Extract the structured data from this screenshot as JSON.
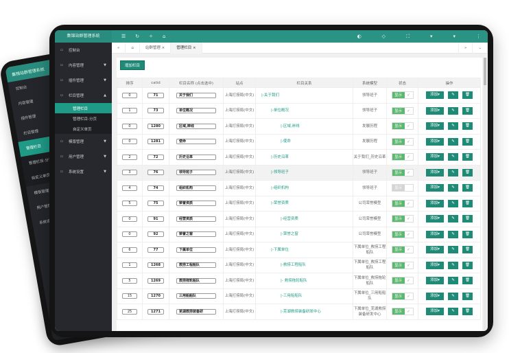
{
  "app": {
    "title": "集锦站群管理系统"
  },
  "sidebar": {
    "items": [
      {
        "label": "控制台",
        "icon": "home-icon"
      },
      {
        "label": "内容管理",
        "icon": "document-icon",
        "caret": "▼"
      },
      {
        "label": "插件管理",
        "icon": "plugin-icon",
        "caret": "▼"
      },
      {
        "label": "栏目管理",
        "icon": "column-icon",
        "caret": "▲"
      }
    ],
    "sub_items": [
      {
        "label": "管理栏目",
        "active": true
      },
      {
        "label": "管理栏目-分页"
      },
      {
        "label": "自定义单页"
      }
    ],
    "more_items": [
      {
        "label": "模版管理",
        "icon": "template-icon",
        "caret": "▼"
      },
      {
        "label": "用户管理",
        "icon": "user-icon",
        "caret": "▼"
      },
      {
        "label": "系统设置",
        "icon": "settings-icon",
        "caret": "▼"
      }
    ]
  },
  "tabs": [
    {
      "label": "站群管理"
    },
    {
      "label": "管理栏目"
    }
  ],
  "main": {
    "add_button": "增加栏目",
    "headers": [
      "排序",
      "catid",
      "栏目名称 (点击选中)",
      "站点",
      "栏目关系",
      "系统模型",
      "状态",
      "操作"
    ],
    "site": "上海打捞局(中文)",
    "status_label": "显示",
    "add_label": "添加▾",
    "rows": [
      {
        "sort": "0",
        "catid": "71",
        "name": "关于我们",
        "rel": "|-关于我们",
        "model": "领导班子",
        "level": 0,
        "on": true
      },
      {
        "sort": "1",
        "catid": "73",
        "name": "单位概况",
        "rel": "|-单位概况",
        "model": "领导班子",
        "level": 1,
        "on": true
      },
      {
        "sort": "0",
        "catid": "1280",
        "name": "区域,岸线",
        "rel": "|-区域,岸线",
        "model": "发展历程",
        "level": 2,
        "on": true
      },
      {
        "sort": "0",
        "catid": "1281",
        "name": "使命",
        "rel": "|-使命",
        "model": "发展历程",
        "level": 2,
        "on": true
      },
      {
        "sort": "2",
        "catid": "72",
        "name": "历史沿革",
        "rel": "|-历史沿革",
        "model": "关于我们_历史沿革",
        "level": 1,
        "on": true
      },
      {
        "sort": "3",
        "catid": "76",
        "name": "领导班子",
        "rel": "|-领导班子",
        "model": "领导班子",
        "level": 1,
        "on": true,
        "highlight": true
      },
      {
        "sort": "4",
        "catid": "74",
        "name": "组织机构",
        "rel": "|-组织机构",
        "model": "领导班子",
        "level": 1,
        "on": false
      },
      {
        "sort": "5",
        "catid": "75",
        "name": "荣誉资质",
        "rel": "|-荣誉资质",
        "model": "公司荣誉模型",
        "level": 1,
        "on": true
      },
      {
        "sort": "0",
        "catid": "91",
        "name": "经营资质",
        "rel": "|-经营资质",
        "model": "公司荣誉模型",
        "level": 2,
        "on": true
      },
      {
        "sort": "0",
        "catid": "92",
        "name": "荣誉之窗",
        "rel": "|-荣誉之窗",
        "model": "公司荣誉模型",
        "level": 2,
        "on": true
      },
      {
        "sort": "6",
        "catid": "77",
        "name": "下属单位",
        "rel": "|-下属单位",
        "model": "下属单位_救捞工程船队",
        "level": 1,
        "on": true
      },
      {
        "sort": "1",
        "catid": "1268",
        "name": "救捞工程船队",
        "rel": "|-救捞工程船队",
        "model": "下属单位_救捞工程船队",
        "level": 2,
        "on": true
      },
      {
        "sort": "5",
        "catid": "1269",
        "name": "救捞拖轮船队",
        "rel": "|- 救捞拖轮船队",
        "model": "下属单位_救捞拖轮船队",
        "level": 2,
        "on": true
      },
      {
        "sort": "15",
        "catid": "1270",
        "name": "三用船船队",
        "rel": "|-三用船船队",
        "model": "下属单位_三用船船队",
        "level": 2,
        "on": true
      },
      {
        "sort": "25",
        "catid": "1271",
        "name": "芜湖救捞装备研",
        "rel": "|-芜湖救捞装备研发中心",
        "model": "下属单位_芜湖救捞装备研发中心",
        "level": 2,
        "on": true
      }
    ]
  },
  "colors": {
    "accent": "#2a9384",
    "sidebar": "#26282d",
    "button": "#1f8a76",
    "switch_on": "#5cb870"
  }
}
